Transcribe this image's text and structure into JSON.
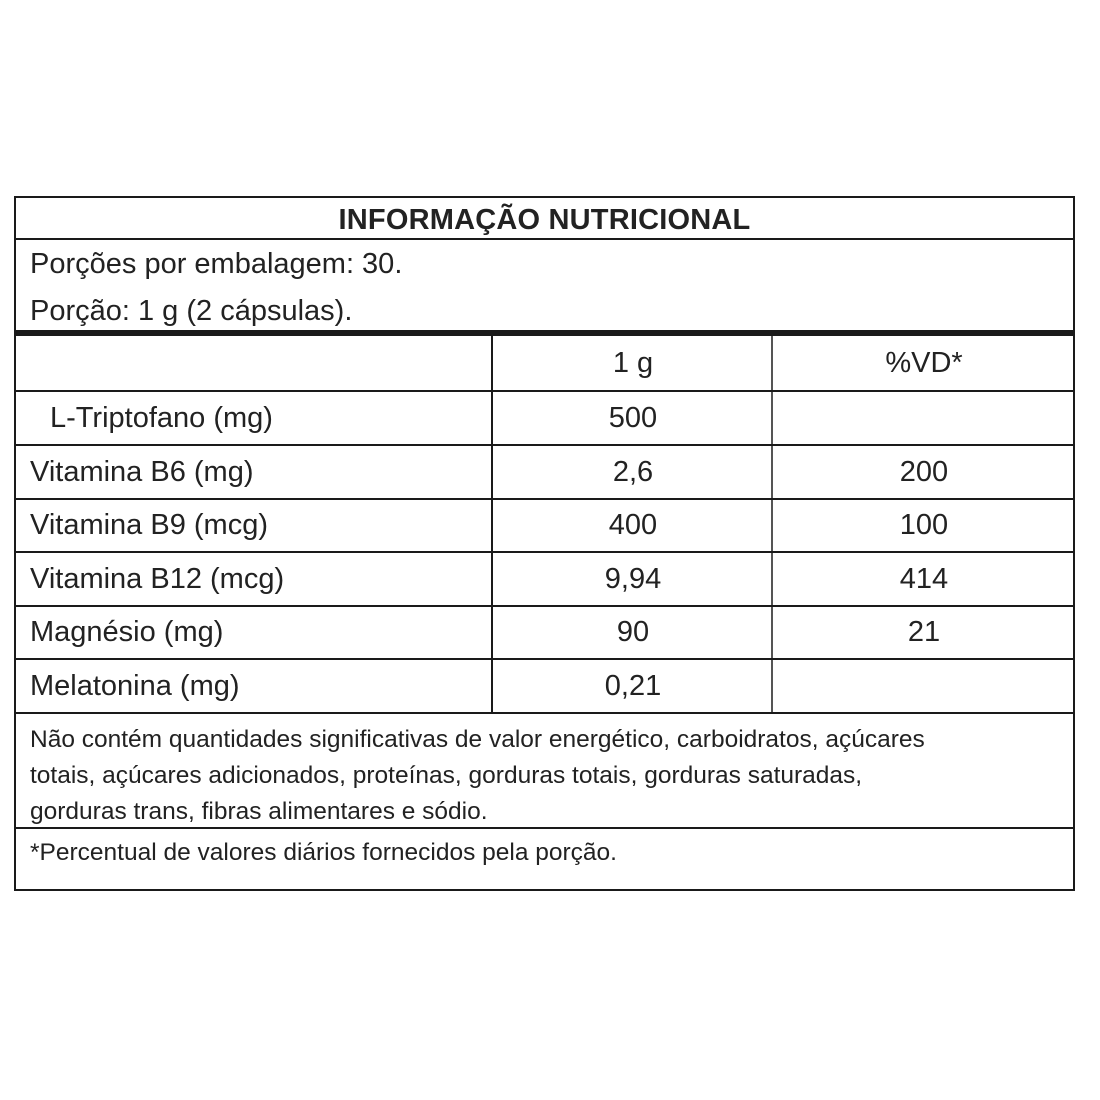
{
  "title": "INFORMAÇÃO NUTRICIONAL",
  "servings_per_package": "Porções por embalagem: 30.",
  "serving_size": "Porção: 1 g (2 cápsulas).",
  "columns": {
    "name": "",
    "quantity": "1 g",
    "daily_value": "%VD*"
  },
  "rows": [
    {
      "name": "L-Triptofano (mg)",
      "quantity": "500",
      "daily_value": ""
    },
    {
      "name": "Vitamina B6 (mg)",
      "quantity": "2,6",
      "daily_value": "200"
    },
    {
      "name": "Vitamina B9 (mcg)",
      "quantity": "400",
      "daily_value": "100"
    },
    {
      "name": "Vitamina B12 (mcg)",
      "quantity": "9,94",
      "daily_value": "414"
    },
    {
      "name": "Magnésio (mg)",
      "quantity": "90",
      "daily_value": "21"
    },
    {
      "name": "Melatonina (mg)",
      "quantity": "0,21",
      "daily_value": ""
    }
  ],
  "note_lines": [
    "Não contém quantidades significativas de valor energético, carboidratos, açúcares",
    "totais, açúcares adicionados, proteínas, gorduras totais, gorduras saturadas,",
    "gorduras trans, fibras alimentares e sódio."
  ],
  "footnote": "*Percentual de valores diários fornecidos pela porção."
}
